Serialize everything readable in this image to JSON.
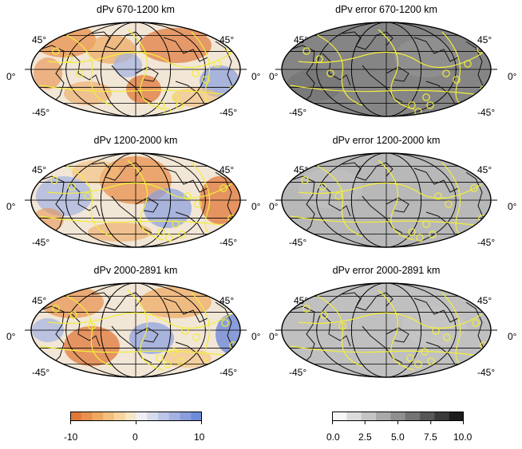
{
  "panels": [
    {
      "title": "dPv 670-1200 km",
      "kind": "dpv"
    },
    {
      "title": "dPv error 670-1200 km",
      "kind": "err"
    },
    {
      "title": "dPv 1200-2000 km",
      "kind": "dpv"
    },
    {
      "title": "dPv error 1200-2000 km",
      "kind": "err"
    },
    {
      "title": "dPv 2000-2891 km",
      "kind": "dpv"
    },
    {
      "title": "dPv error 2000-2891 km",
      "kind": "err"
    }
  ],
  "lat_labels": {
    "north": "45°",
    "equator": "0°",
    "south": "-45°"
  },
  "colorbars": [
    {
      "ticks": [
        "-10",
        "0",
        "10"
      ],
      "colors": [
        "#e0783a",
        "#e8904c",
        "#eea860",
        "#f3bf7c",
        "#f6d49c",
        "#f7e6c4",
        "#eeeef4",
        "#d6dbee",
        "#bcc6e8",
        "#a3b2e2",
        "#8a9ede",
        "#6f8bd8"
      ]
    },
    {
      "ticks": [
        "0.0",
        "2.5",
        "5.0",
        "7.5",
        "10.0"
      ],
      "colors": [
        "#f7f7f7",
        "#dcdcdc",
        "#c4c4c4",
        "#aaaaaa",
        "#8f8f8f",
        "#737373",
        "#575757",
        "#3a3a3a",
        "#1c1c1c"
      ]
    }
  ],
  "colors": {
    "coastline": "#111111",
    "plate_boundary": "#f2ee3a",
    "graticule": "#000000"
  }
}
